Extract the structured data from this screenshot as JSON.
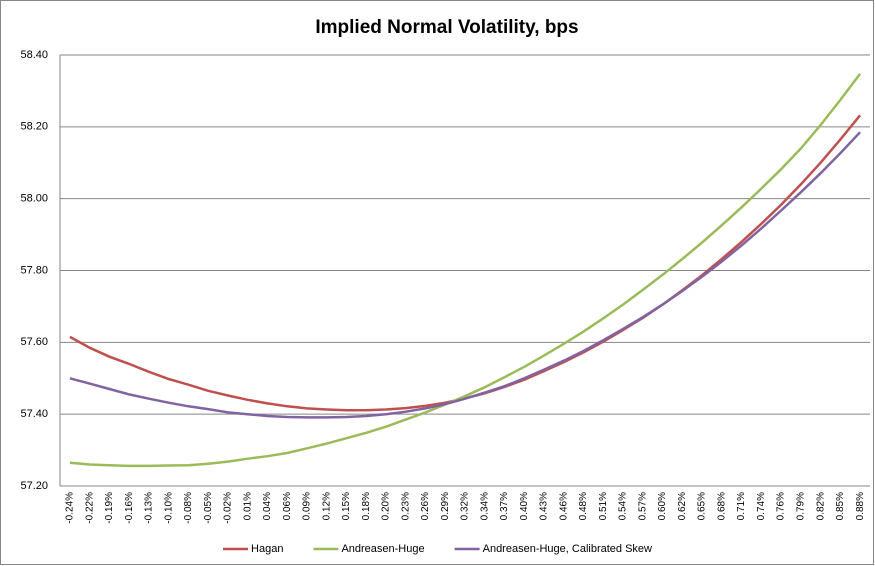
{
  "chart_data": {
    "type": "line",
    "title": "Implied Normal Volatility, bps",
    "categories": [
      "-0.24%",
      "-0.22%",
      "-0.19%",
      "-0.16%",
      "-0.13%",
      "-0.10%",
      "-0.08%",
      "-0.05%",
      "-0.02%",
      "0.01%",
      "0.04%",
      "0.06%",
      "0.09%",
      "0.12%",
      "0.15%",
      "0.18%",
      "0.20%",
      "0.23%",
      "0.26%",
      "0.29%",
      "0.32%",
      "0.34%",
      "0.37%",
      "0.40%",
      "0.43%",
      "0.46%",
      "0.48%",
      "0.51%",
      "0.54%",
      "0.57%",
      "0.60%",
      "0.62%",
      "0.65%",
      "0.68%",
      "0.71%",
      "0.74%",
      "0.76%",
      "0.79%",
      "0.82%",
      "0.85%",
      "0.88%"
    ],
    "series": [
      {
        "name": "Hagan",
        "color": "#c0504d",
        "values": [
          57.615,
          57.585,
          57.56,
          57.54,
          57.518,
          57.498,
          57.482,
          57.465,
          57.452,
          57.44,
          57.43,
          57.422,
          57.416,
          57.413,
          57.411,
          57.411,
          57.413,
          57.417,
          57.423,
          57.432,
          57.444,
          57.458,
          57.476,
          57.496,
          57.52,
          57.545,
          57.572,
          57.602,
          57.634,
          57.668,
          57.705,
          57.745,
          57.787,
          57.832,
          57.88,
          57.93,
          57.983,
          58.04,
          58.1,
          58.165,
          58.232
        ]
      },
      {
        "name": "Andreasen-Huge",
        "color": "#9bbb59",
        "values": [
          57.265,
          57.26,
          57.258,
          57.256,
          57.256,
          57.257,
          57.258,
          57.262,
          57.268,
          57.276,
          57.283,
          57.292,
          57.305,
          57.318,
          57.333,
          57.348,
          57.365,
          57.385,
          57.405,
          57.427,
          57.45,
          57.475,
          57.503,
          57.532,
          57.563,
          57.596,
          57.63,
          57.667,
          57.705,
          57.746,
          57.788,
          57.832,
          57.878,
          57.926,
          57.976,
          58.028,
          58.082,
          58.14,
          58.205,
          58.275,
          58.348
        ]
      },
      {
        "name": "Andreasen-Huge, Calibrated Skew",
        "color": "#8064a2",
        "values": [
          57.5,
          57.485,
          57.47,
          57.455,
          57.443,
          57.432,
          57.422,
          57.414,
          57.405,
          57.4,
          57.395,
          57.392,
          57.391,
          57.391,
          57.392,
          57.395,
          57.4,
          57.407,
          57.416,
          57.428,
          57.443,
          57.46,
          57.478,
          57.5,
          57.524,
          57.549,
          57.576,
          57.606,
          57.637,
          57.67,
          57.705,
          57.743,
          57.783,
          57.825,
          57.87,
          57.917,
          57.967,
          58.018,
          58.071,
          58.127,
          58.185
        ]
      }
    ],
    "ylim": [
      57.2,
      58.4
    ],
    "yticks": [
      {
        "value": 57.2,
        "label": "57.20"
      },
      {
        "value": 57.4,
        "label": "57.40"
      },
      {
        "value": 57.6,
        "label": "57.60"
      },
      {
        "value": 57.8,
        "label": "57.80"
      },
      {
        "value": 58.0,
        "label": "58.00"
      },
      {
        "value": 58.2,
        "label": "58.20"
      },
      {
        "value": 58.4,
        "label": "58.40"
      }
    ],
    "grid": true,
    "legend": "bottom"
  }
}
